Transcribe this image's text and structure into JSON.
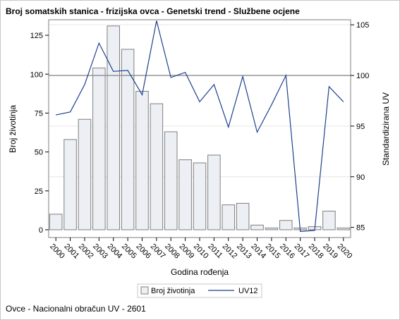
{
  "title": "Broj somatskih stanica - frizijska ovca - Genetski trend - Službene ocjene",
  "footer": "Ovce - Nacionalni obračun UV - 2601",
  "colors": {
    "bar_fill": "#eceff4",
    "bar_stroke": "#7f7f7f",
    "line": "#1f3f8f",
    "refline": "#8c8c8c",
    "grid": "#e6e6e6"
  },
  "chart_data": {
    "type": "bar",
    "categories": [
      "2000",
      "2001",
      "2002",
      "2003",
      "2004",
      "2005",
      "2006",
      "2007",
      "2008",
      "2009",
      "2010",
      "2011",
      "2012",
      "2013",
      "2014",
      "2015",
      "2016",
      "2017",
      "2018",
      "2019",
      "2020"
    ],
    "xlabel": "Godina rođenja",
    "ylabel": "Broj životinja",
    "y2label": "Standardizirana UV",
    "ylim": [
      -5,
      135
    ],
    "y2lim": [
      84,
      105.5
    ],
    "yticks": [
      0,
      25,
      50,
      75,
      100,
      125
    ],
    "y2ticks": [
      85,
      90,
      95,
      100,
      105
    ],
    "reference_line_y2": 100,
    "grid": true,
    "legend_position": "bottom",
    "series": [
      {
        "name": "Broj životinja",
        "type": "bar",
        "axis": "left",
        "values": [
          10,
          58,
          71,
          104,
          131,
          116,
          89,
          81,
          63,
          45,
          43,
          48,
          16,
          17,
          3,
          1,
          6,
          1,
          2,
          12,
          1
        ]
      },
      {
        "name": "UV12",
        "type": "line",
        "axis": "right",
        "values": [
          96.1,
          96.4,
          99.1,
          103.2,
          100.4,
          100.5,
          98.1,
          105.4,
          99.8,
          100.3,
          97.4,
          99.1,
          94.9,
          99.9,
          94.4,
          97.1,
          100.0,
          84.6,
          84.7,
          98.9,
          97.4
        ]
      }
    ]
  }
}
